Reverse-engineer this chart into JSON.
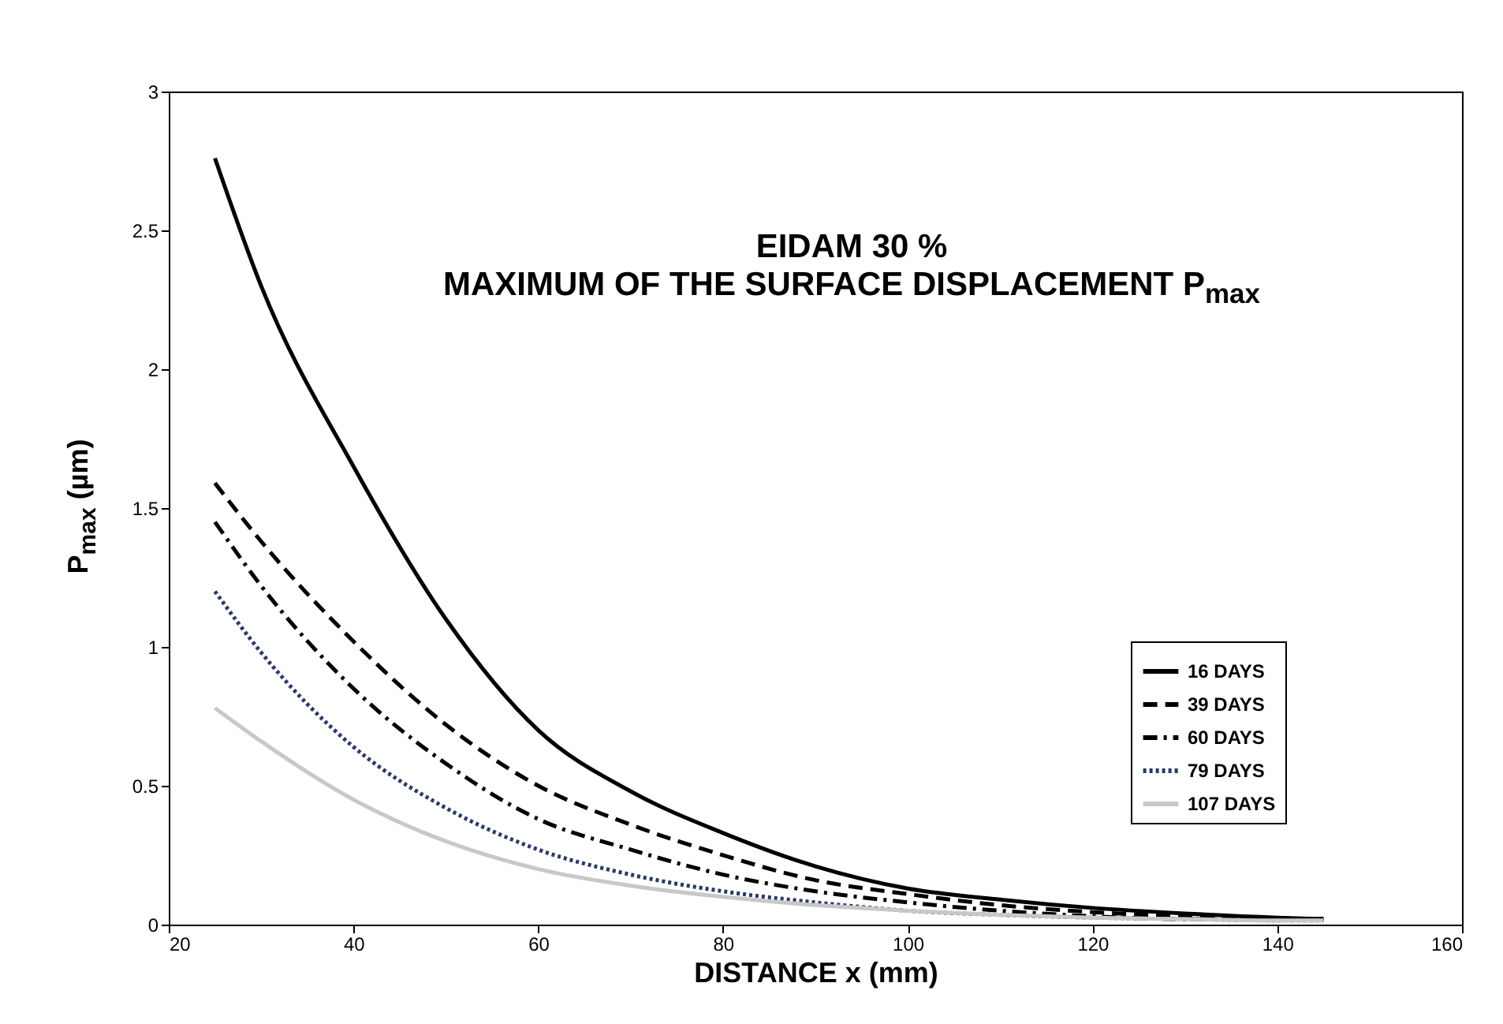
{
  "chart_data": {
    "type": "line",
    "title": "EIDAM 30 %",
    "subtitle": "MAXIMUM OF THE SURFACE DISPLACEMENT P$_{max}$",
    "xlabel": "DISTANCE x (mm)",
    "ylabel": "P$_{max}$ (µm)",
    "x": [
      25,
      30,
      40,
      50,
      60,
      70,
      80,
      90,
      100,
      110,
      120,
      130,
      140,
      145
    ],
    "series": [
      {
        "name": "16 DAYS",
        "color": "#000000",
        "line_style": "solid",
        "values": [
          2.76,
          2.3,
          1.65,
          1.1,
          0.7,
          0.48,
          0.33,
          0.21,
          0.13,
          0.09,
          0.06,
          0.04,
          0.025,
          0.02
        ]
      },
      {
        "name": "39 DAYS",
        "color": "#000000",
        "line_style": "dashed",
        "values": [
          1.59,
          1.38,
          1.02,
          0.72,
          0.5,
          0.36,
          0.25,
          0.16,
          0.11,
          0.07,
          0.045,
          0.03,
          0.02,
          0.02
        ]
      },
      {
        "name": "60 DAYS",
        "color": "#000000",
        "line_style": "dashdot",
        "values": [
          1.45,
          1.22,
          0.85,
          0.58,
          0.38,
          0.27,
          0.18,
          0.12,
          0.08,
          0.05,
          0.03,
          0.02,
          0.02,
          0.02
        ]
      },
      {
        "name": "79 DAYS",
        "color": "#2b3a67",
        "line_style": "dotted",
        "values": [
          1.2,
          0.98,
          0.64,
          0.42,
          0.27,
          0.18,
          0.12,
          0.08,
          0.05,
          0.035,
          0.025,
          0.02,
          0.015,
          0.015
        ]
      },
      {
        "name": "107 DAYS",
        "color": "#c8c8c8",
        "line_style": "solid",
        "values": [
          0.78,
          0.66,
          0.45,
          0.3,
          0.2,
          0.14,
          0.1,
          0.07,
          0.05,
          0.035,
          0.025,
          0.02,
          0.015,
          0.015
        ]
      }
    ],
    "xlim": [
      20,
      160
    ],
    "xticks": [
      20,
      40,
      60,
      80,
      100,
      120,
      140,
      160
    ],
    "ylim": [
      0,
      3
    ],
    "yticks": [
      0,
      0.5,
      1,
      1.5,
      2,
      2.5,
      3
    ],
    "grid": false,
    "legend": "right"
  }
}
